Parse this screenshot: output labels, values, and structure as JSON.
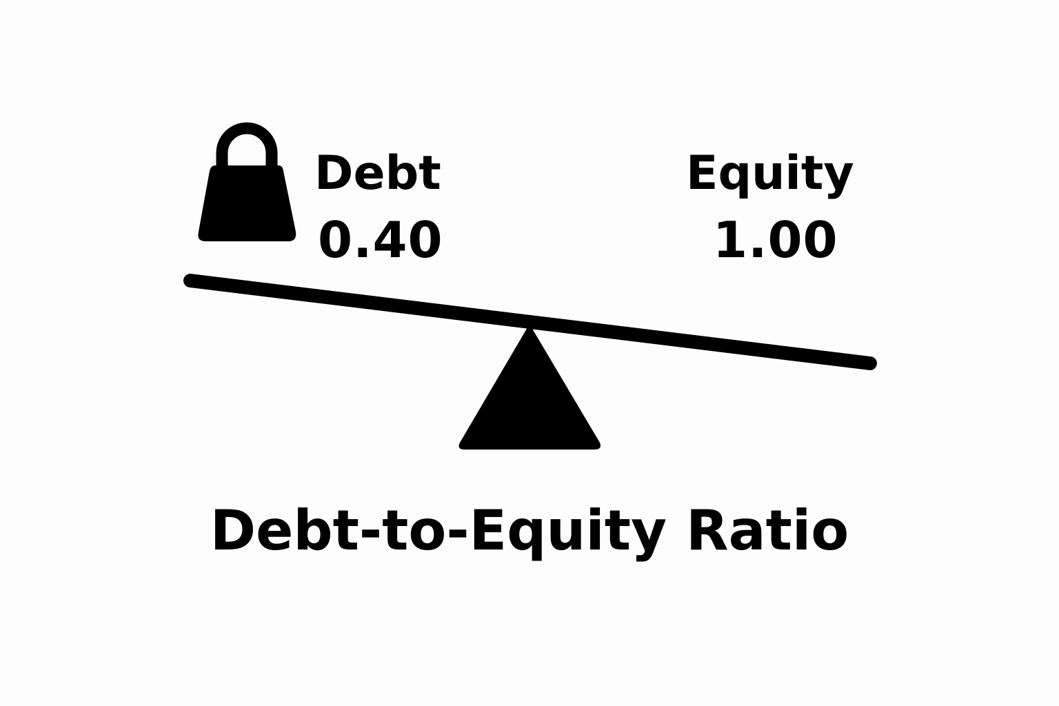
{
  "debt": {
    "label": "Debt",
    "value": "0.40"
  },
  "equity": {
    "label": "Equity",
    "value": "1.00"
  },
  "caption": "Debt-to-Equity Ratio",
  "icons": {
    "weight": "weight-icon",
    "seesaw_beam": "seesaw-beam",
    "fulcrum": "fulcrum-triangle"
  },
  "colors": {
    "ink": "#000000",
    "background": "#fdfdfd"
  }
}
